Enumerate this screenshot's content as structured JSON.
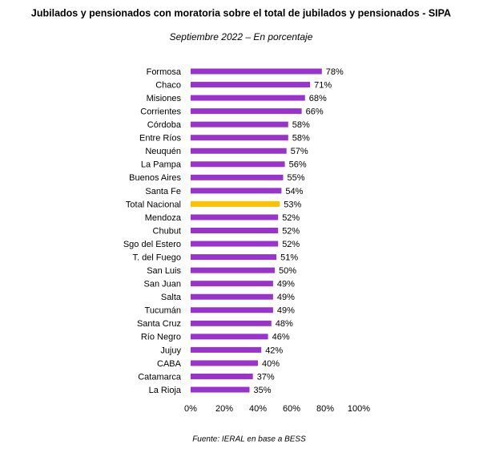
{
  "chart_data": {
    "type": "bar",
    "orientation": "horizontal",
    "title": "Jubilados y pensionados con moratoria sobre el total de jubilados y pensionados - SIPA",
    "subtitle": "Septiembre 2022 – En porcentaje",
    "source": "Fuente: IERAL en base a BESS",
    "categories": [
      "Formosa",
      "Chaco",
      "Misiones",
      "Corrientes",
      "Córdoba",
      "Entre Ríos",
      "Neuquén",
      "La Pampa",
      "Buenos Aires",
      "Santa Fe",
      "Total Nacional",
      "Mendoza",
      "Chubut",
      "Sgo del Estero",
      "T. del Fuego",
      "San Luis",
      "San Juan",
      "Salta",
      "Tucumán",
      "Santa Cruz",
      "Río Negro",
      "Jujuy",
      "CABA",
      "Catamarca",
      "La Rioja"
    ],
    "values": [
      78,
      71,
      68,
      66,
      58,
      58,
      57,
      56,
      55,
      54,
      53,
      52,
      52,
      52,
      51,
      50,
      49,
      49,
      49,
      48,
      46,
      42,
      40,
      37,
      35
    ],
    "value_labels": [
      "78%",
      "71%",
      "68%",
      "66%",
      "58%",
      "58%",
      "57%",
      "56%",
      "55%",
      "54%",
      "53%",
      "52%",
      "52%",
      "52%",
      "51%",
      "50%",
      "49%",
      "49%",
      "49%",
      "48%",
      "46%",
      "42%",
      "40%",
      "37%",
      "35%"
    ],
    "colors": [
      "#9933cc",
      "#9933cc",
      "#9933cc",
      "#9933cc",
      "#9933cc",
      "#9933cc",
      "#9933cc",
      "#9933cc",
      "#9933cc",
      "#9933cc",
      "#ffc000",
      "#9933cc",
      "#9933cc",
      "#9933cc",
      "#9933cc",
      "#9933cc",
      "#9933cc",
      "#9933cc",
      "#9933cc",
      "#9933cc",
      "#9933cc",
      "#9933cc",
      "#9933cc",
      "#9933cc",
      "#9933cc"
    ],
    "xlim": [
      0,
      100
    ],
    "xticks": [
      {
        "value": 0,
        "label": "0%"
      },
      {
        "value": 20,
        "label": "20%"
      },
      {
        "value": 40,
        "label": "40%"
      },
      {
        "value": 60,
        "label": "60%"
      },
      {
        "value": 80,
        "label": "80%"
      },
      {
        "value": 100,
        "label": "100%"
      }
    ],
    "grid": false
  }
}
